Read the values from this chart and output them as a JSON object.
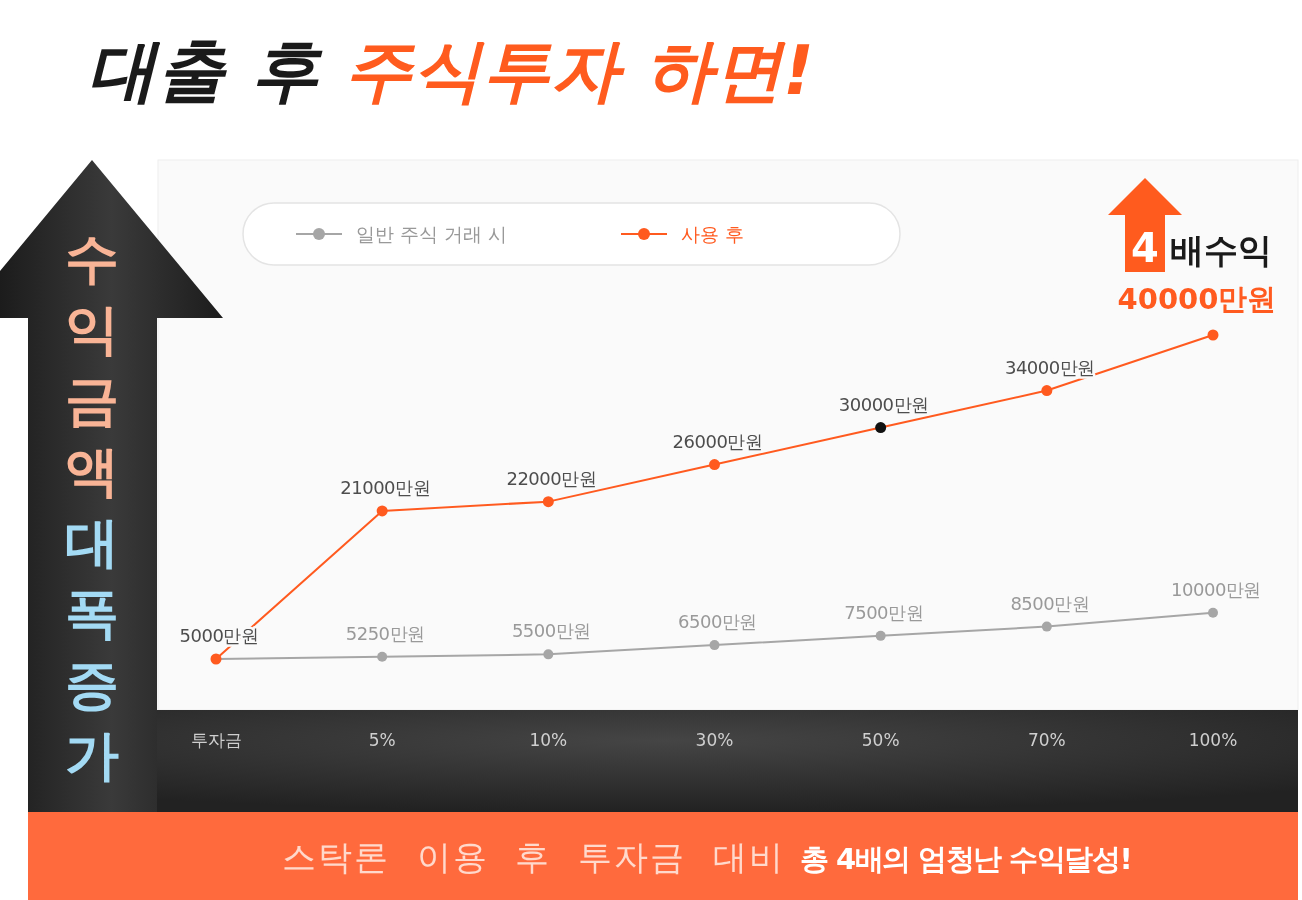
{
  "chart_data": {
    "type": "line",
    "title": "대출 후 주식투자 하면!",
    "ylabel": "수익금액 대폭 증가",
    "categories": [
      "투자금",
      "5%",
      "10%",
      "30%",
      "50%",
      "70%",
      "100%"
    ],
    "series": [
      {
        "name": "일반 주식 거래 시",
        "color": "#a6a6a6",
        "values": [
          5000,
          5250,
          5500,
          6500,
          7500,
          8500,
          10000
        ],
        "value_labels": [
          null,
          "5250만원",
          "5500만원",
          "6500만원",
          "7500만원",
          "8500만원",
          "10000만원"
        ]
      },
      {
        "name": "사용 후",
        "color": "#ff5a1f",
        "colors": [
          "#ff5a1f",
          "#ff5a1f",
          "#ff5a1f",
          "#ff5a1f",
          "#111111",
          "#ff5a1f",
          "#ff5a1f"
        ],
        "values": [
          5000,
          21000,
          22000,
          26000,
          30000,
          34000,
          40000
        ],
        "value_labels": [
          "5000만원",
          "21000만원",
          "22000만원",
          "26000만원",
          "30000만원",
          "34000만원",
          "40000만원"
        ]
      }
    ],
    "annotations": [
      "4배수익",
      "스탁론 이용 후 투자금 대비",
      "총 4배의 엄청난 수익달성!"
    ],
    "legend": "top left",
    "marker": "circle"
  }
}
